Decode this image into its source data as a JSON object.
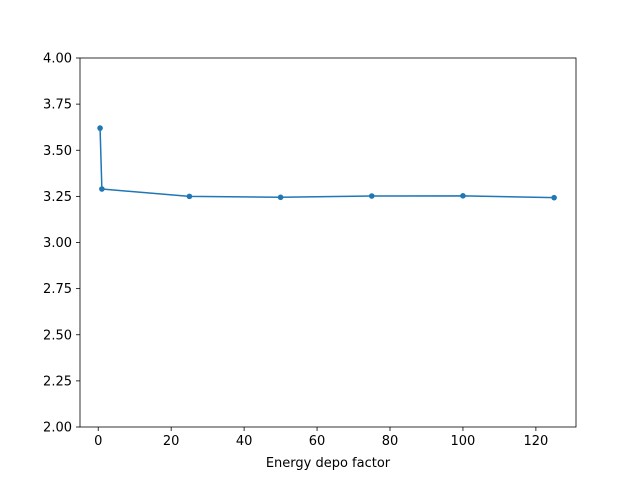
{
  "chart_data": {
    "type": "line",
    "title": "",
    "xlabel": "Energy depo factor",
    "ylabel": "",
    "xlim": [
      -5,
      131
    ],
    "ylim": [
      2.0,
      4.0
    ],
    "x_ticks": [
      0,
      20,
      40,
      60,
      80,
      100,
      120
    ],
    "y_ticks": [
      2.0,
      2.25,
      2.5,
      2.75,
      3.0,
      3.25,
      3.5,
      3.75,
      4.0
    ],
    "y_tick_labels": [
      "2.00",
      "2.25",
      "2.50",
      "2.75",
      "3.00",
      "3.25",
      "3.50",
      "3.75",
      "4.00"
    ],
    "grid": false,
    "legend": "none",
    "series": [
      {
        "color": "#1f77b4",
        "marker": "circle",
        "x": [
          0.5,
          1,
          25,
          50,
          75,
          100,
          125
        ],
        "y": [
          3.62,
          3.29,
          3.25,
          3.245,
          3.252,
          3.253,
          3.243
        ]
      }
    ]
  }
}
